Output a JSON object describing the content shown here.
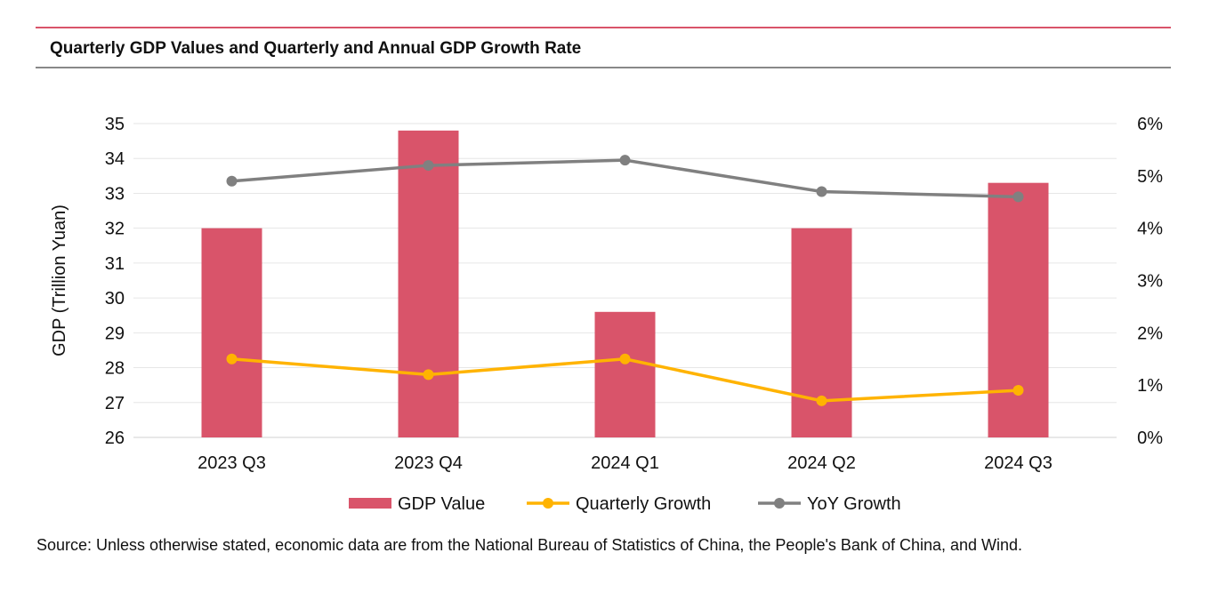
{
  "header": {
    "title": "Quarterly GDP Values and Quarterly and Annual GDP Growth Rate"
  },
  "footer": {
    "source": "Source: Unless otherwise stated, economic data are from the National Bureau of Statistics of China, the People's Bank of China, and Wind."
  },
  "chart_data": {
    "type": "bar+line",
    "title": "Quarterly GDP Values and Quarterly and Annual GDP Growth Rate",
    "categories": [
      "2023 Q3",
      "2023 Q4",
      "2024 Q1",
      "2024 Q2",
      "2024 Q3"
    ],
    "ylabel": "GDP (Trillion Yuan)",
    "ylim": [
      26,
      35
    ],
    "yticks": [
      "26",
      "27",
      "28",
      "29",
      "30",
      "31",
      "32",
      "33",
      "34",
      "35"
    ],
    "y2lim": [
      0,
      6
    ],
    "y2ticks": [
      "0%",
      "1%",
      "2%",
      "3%",
      "4%",
      "5%",
      "6%"
    ],
    "grid": true,
    "legend_position": "bottom",
    "series": [
      {
        "name": "GDP Value",
        "type": "bar",
        "axis": "left",
        "color": "#d9546a",
        "values": [
          32.0,
          34.8,
          29.6,
          32.0,
          33.3
        ]
      },
      {
        "name": "Quarterly Growth",
        "type": "line",
        "axis": "right",
        "color": "#ffb300",
        "values": [
          1.5,
          1.2,
          1.5,
          0.7,
          0.9
        ]
      },
      {
        "name": "YoY Growth",
        "type": "line",
        "axis": "right",
        "color": "#808080",
        "values": [
          4.9,
          5.2,
          5.3,
          4.7,
          4.6
        ]
      }
    ]
  }
}
